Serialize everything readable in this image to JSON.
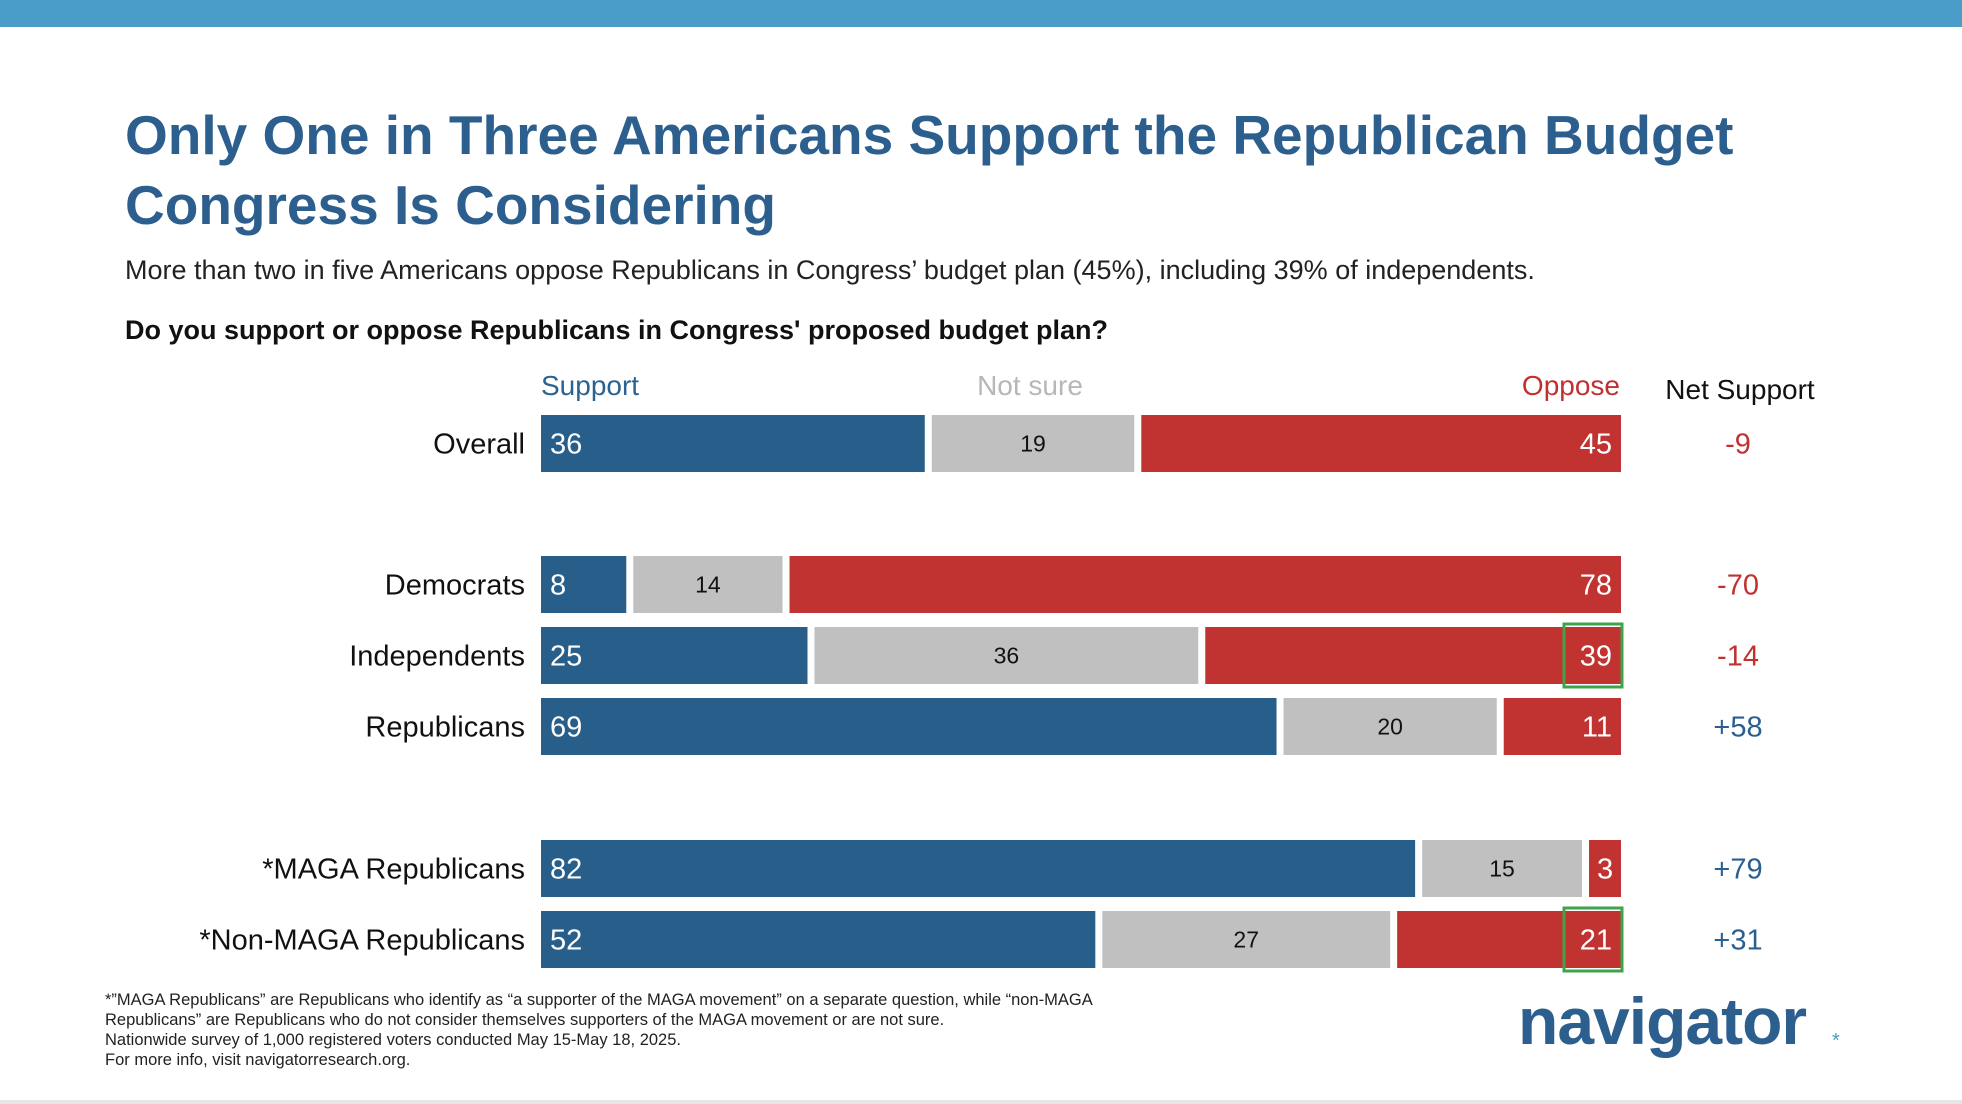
{
  "title": "Only One in Three Americans Support the Republican Budget Congress Is Considering",
  "subtitle": "More than two in five Americans oppose Republicans in Congress’ budget plan (45%), including 39% of independents.",
  "question": "Do you support or oppose Republicans in Congress' proposed budget plan?",
  "headers": {
    "support": "Support",
    "not_sure": "Not sure",
    "oppose": "Oppose",
    "net": "Net Support"
  },
  "colors": {
    "support": "#285f8a",
    "not_sure": "#c0c0c0",
    "oppose": "#c13330",
    "highlight": "#3fa34a",
    "net_negative": "#c0312f",
    "net_positive": "#2a5f8f",
    "title": "#2c5f8e"
  },
  "chart_data": {
    "type": "bar",
    "orientation": "horizontal",
    "stacked": true,
    "categories": [
      "Overall",
      "Democrats",
      "Independents",
      "Republicans",
      "*MAGA Republicans",
      "*Non-MAGA Republicans"
    ],
    "series": [
      {
        "name": "Support",
        "values": [
          36,
          8,
          25,
          69,
          82,
          52
        ]
      },
      {
        "name": "Not sure",
        "values": [
          19,
          14,
          36,
          20,
          15,
          27
        ]
      },
      {
        "name": "Oppose",
        "values": [
          45,
          78,
          39,
          11,
          3,
          21
        ]
      }
    ],
    "net_support": [
      "-9",
      "-70",
      "-14",
      "+58",
      "+79",
      "+31"
    ],
    "highlighted_oppose": [
      "Independents",
      "*Non-MAGA Republicans"
    ],
    "xlim": [
      0,
      100
    ]
  },
  "footnote": [
    "*”MAGA Republicans” are Republicans who identify as “a supporter of the MAGA movement” on a separate question, while “non-MAGA",
    "Republicans” are Republicans who do not consider themselves supporters of the MAGA movement or are not sure.",
    "Nationwide survey of 1,000 registered voters conducted May 15-May 18, 2025.",
    "For more info, visit navigatorresearch.org."
  ],
  "logo": {
    "text": "navigator",
    "mark": "*"
  }
}
